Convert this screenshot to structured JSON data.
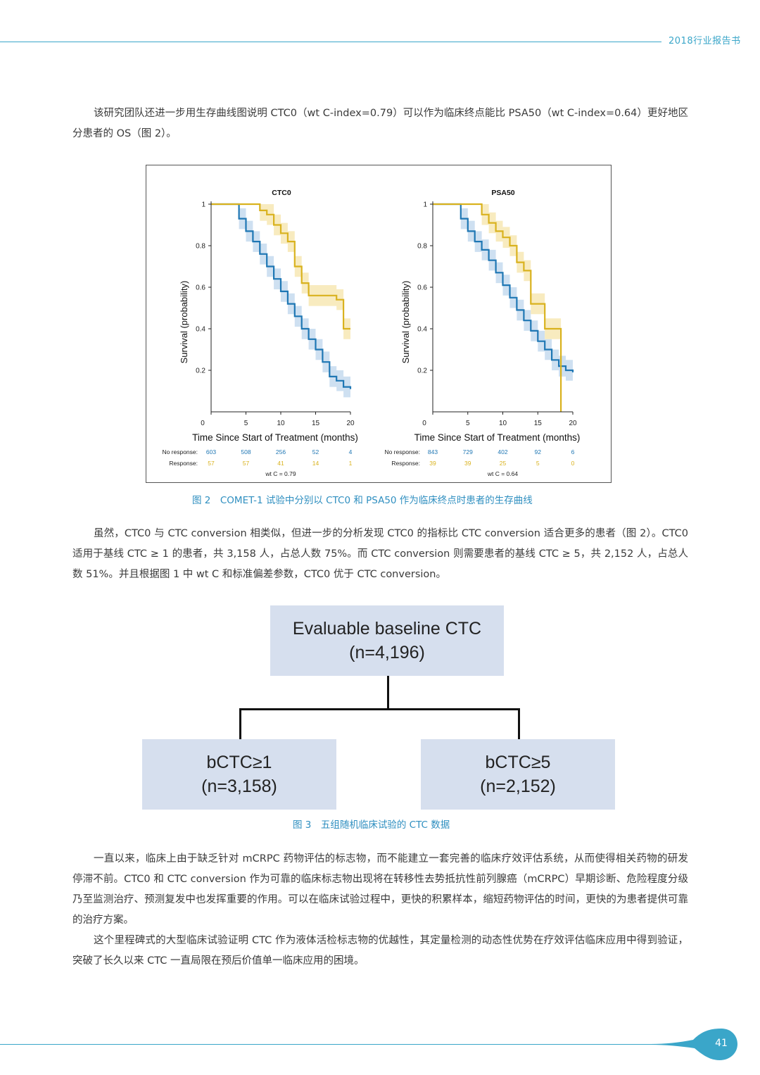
{
  "header": {
    "title": "2018行业报告书"
  },
  "paragraphs": {
    "p1": "该研究团队还进一步用生存曲线图说明 CTC0（wt C-index=0.79）可以作为临床终点能比 PSA50（wt C-index=0.64）更好地区分患者的 OS（图 2）。",
    "p2": "虽然，CTC0 与 CTC conversion 相类似，但进一步的分析发现 CTC0 的指标比 CTC conversion 适合更多的患者（图 2）。CTC0 适用于基线 CTC ≥ 1 的患者，共 3,158 人，占总人数 75%。而 CTC conversion 则需要患者的基线 CTC ≥ 5，共 2,152 人，占总人数 51%。并且根据图 1 中 wt C 和标准偏差参数，CTC0 优于 CTC conversion。",
    "p3": "一直以来，临床上由于缺乏针对 mCRPC 药物评估的标志物，而不能建立一套完善的临床疗效评估系统，从而使得相关药物的研发停滞不前。CTC0 和 CTC conversion 作为可靠的临床标志物出现将在转移性去势抵抗性前列腺癌（mCRPC）早期诊断、危险程度分级乃至监测治疗、预测复发中也发挥重要的作用。可以在临床试验过程中，更快的积累样本，缩短药物评估的时间，更快的为患者提供可靠的治疗方案。",
    "p4": "这个里程碑式的大型临床试验证明 CTC 作为液体活检标志物的优越性，其定量检测的动态性优势在疗效评估临床应用中得到验证，突破了长久以来 CTC 一直局限在预后价值单一临床应用的困境。"
  },
  "figure2": {
    "caption": "图 2　COMET-1 试验中分别以 CTC0 和 PSA50 作为临床终点时患者的生存曲线"
  },
  "figure3": {
    "caption": "图 3　五组随机临床试验的 CTC 数据",
    "top": {
      "line1": "Evaluable baseline CTC",
      "line2": "(n=4,196)"
    },
    "left": {
      "line1": "bCTC≥1",
      "line2": "(n=3,158)"
    },
    "right": {
      "line1": "bCTC≥5",
      "line2": "(n=2,152)"
    }
  },
  "chart_data": [
    {
      "type": "line",
      "title": "CTC0",
      "xlabel": "Time Since Start of Treatment (months)",
      "ylabel": "Survival (probability)",
      "xlim": [
        0,
        20
      ],
      "ylim": [
        0,
        1
      ],
      "xticks": [
        0,
        5,
        10,
        15,
        20
      ],
      "yticks": [
        0.2,
        0.4,
        0.6,
        0.8,
        1
      ],
      "ytick_labels": [
        "0.2",
        "0.4",
        "0.6",
        "0.8",
        "1"
      ],
      "series": [
        {
          "name": "No response",
          "color": "#1f77b4",
          "band_color": "#c6dbef",
          "x": [
            0,
            3,
            4,
            5,
            6,
            7,
            8,
            9,
            10,
            11,
            12,
            13,
            14,
            15,
            16,
            17,
            18,
            19,
            20
          ],
          "y": [
            1,
            1,
            0.93,
            0.87,
            0.82,
            0.76,
            0.7,
            0.64,
            0.58,
            0.52,
            0.46,
            0.4,
            0.35,
            0.3,
            0.24,
            0.17,
            0.15,
            0.12,
            0.11
          ]
        },
        {
          "name": "Response",
          "color": "#d9b21e",
          "band_color": "#f7e7b4",
          "x": [
            0,
            6,
            7,
            8,
            9,
            10,
            11,
            12,
            13,
            14,
            15,
            16,
            17,
            18,
            19,
            20
          ],
          "y": [
            1,
            1,
            0.97,
            0.95,
            0.9,
            0.86,
            0.82,
            0.7,
            0.62,
            0.56,
            0.56,
            0.56,
            0.56,
            0.54,
            0.4,
            0.4
          ]
        }
      ],
      "risk_table": {
        "row_labels": [
          "No response:",
          "Response:"
        ],
        "no_response": [
          "603",
          "508",
          "256",
          "52",
          "4"
        ],
        "response": [
          "57",
          "57",
          "41",
          "14",
          "1"
        ],
        "note": "wt C = 0.79"
      }
    },
    {
      "type": "line",
      "title": "PSA50",
      "xlabel": "Time Since Start of Treatment (months)",
      "ylabel": "Survival (probability)",
      "xlim": [
        0,
        20
      ],
      "ylim": [
        0,
        1
      ],
      "xticks": [
        0,
        5,
        10,
        15,
        20
      ],
      "yticks": [
        0.2,
        0.4,
        0.6,
        0.8,
        1
      ],
      "ytick_labels": [
        "0.2",
        "0.4",
        "0.6",
        "0.8",
        "1"
      ],
      "series": [
        {
          "name": "No response",
          "color": "#1f77b4",
          "band_color": "#c6dbef",
          "x": [
            0,
            3,
            4,
            5,
            6,
            7,
            8,
            9,
            10,
            11,
            12,
            13,
            14,
            15,
            16,
            17,
            18,
            19,
            20
          ],
          "y": [
            1,
            1,
            0.93,
            0.87,
            0.82,
            0.78,
            0.73,
            0.67,
            0.61,
            0.55,
            0.49,
            0.44,
            0.39,
            0.34,
            0.3,
            0.25,
            0.22,
            0.2,
            0.19
          ]
        },
        {
          "name": "Response",
          "color": "#d9b21e",
          "band_color": "#f7e7b4",
          "x": [
            0,
            6,
            7,
            8,
            9,
            10,
            11,
            12,
            13,
            14,
            15,
            16,
            17,
            18,
            18.3
          ],
          "y": [
            1,
            1,
            0.95,
            0.91,
            0.87,
            0.84,
            0.8,
            0.72,
            0.68,
            0.52,
            0.52,
            0.4,
            0.4,
            0.4,
            0
          ]
        }
      ],
      "risk_table": {
        "row_labels": [
          "No response:",
          "Response:"
        ],
        "no_response": [
          "843",
          "729",
          "402",
          "92",
          "6"
        ],
        "response": [
          "39",
          "39",
          "25",
          "5",
          "0"
        ],
        "note": "wt C = 0.64"
      }
    }
  ],
  "footer": {
    "page_number": "41"
  }
}
